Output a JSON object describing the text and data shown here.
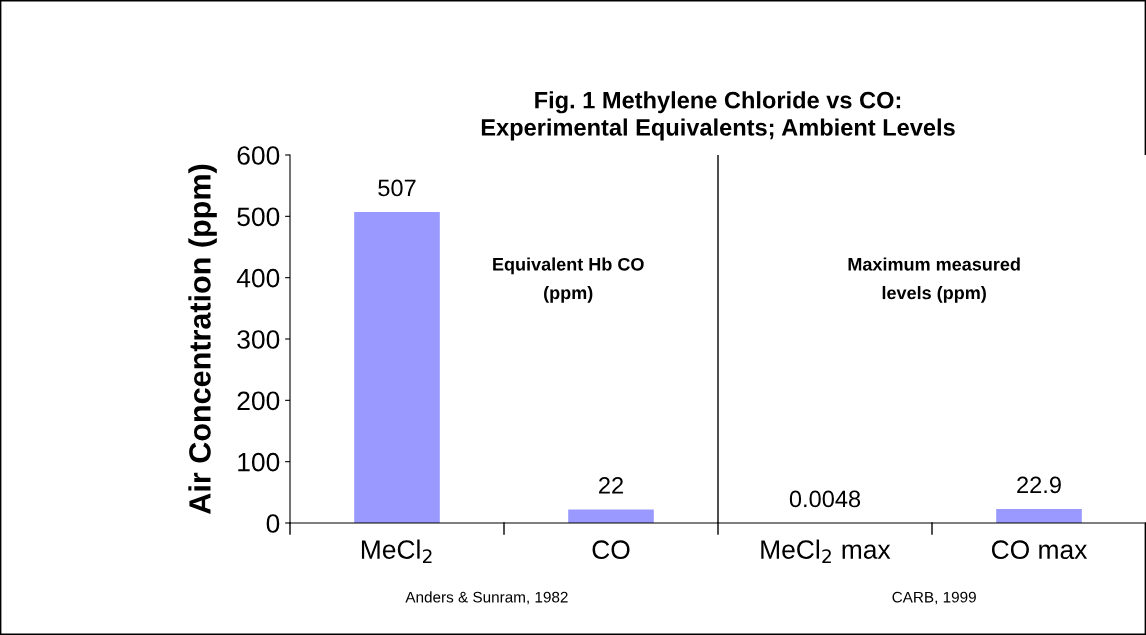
{
  "chart_data": {
    "type": "bar",
    "title": "Fig. 1 Methylene Chloride vs CO:\nExperimental Equivalents; Ambient Levels",
    "ylabel": "Air Concentration (ppm)",
    "categories": [
      "MeCl$_{2}$",
      "CO",
      "MeCl$_{2}$ max",
      "CO max"
    ],
    "values": [
      507,
      22,
      0.0048,
      22.9
    ],
    "color": "#9999ff",
    "data_labels": true,
    "ylim": [
      0,
      600
    ],
    "yticks": [
      0,
      100,
      200,
      300,
      400,
      500,
      600
    ],
    "grid": false,
    "legend": false,
    "annotations": [
      "Equivalent Hb CO\n(ppm)",
      "Maximum measured\nlevels (ppm)",
      "Anders & Sunram, 1982",
      "CARB, 1999"
    ]
  }
}
